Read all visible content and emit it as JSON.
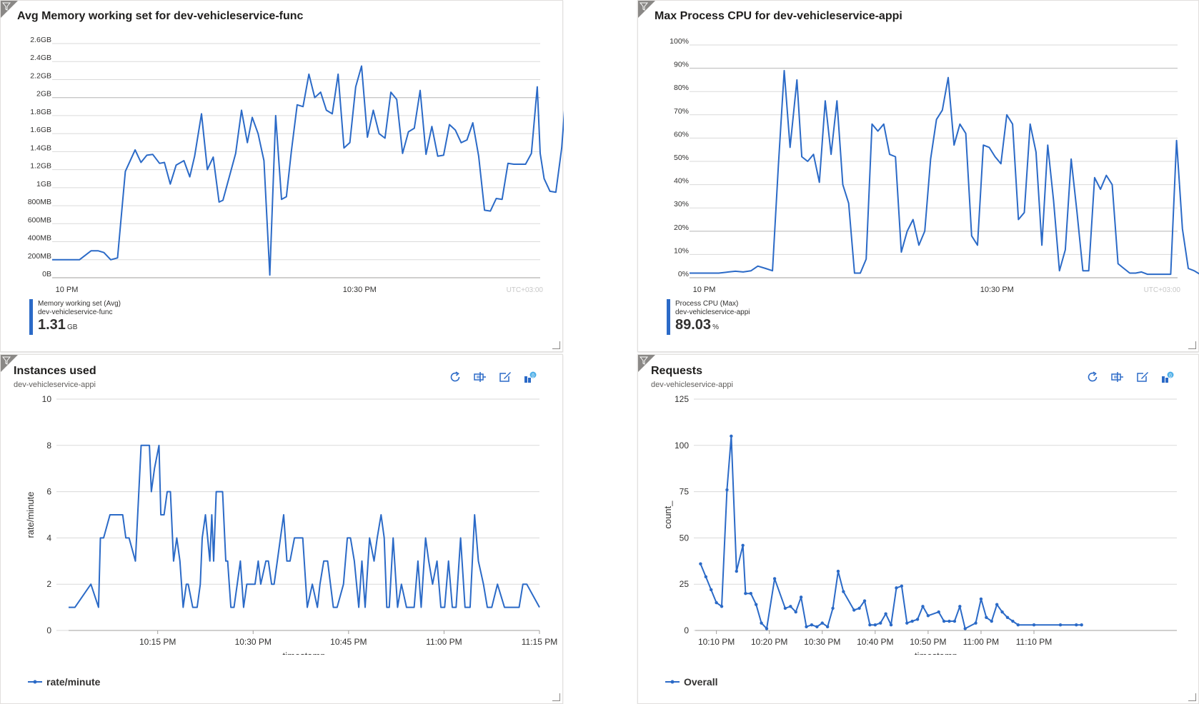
{
  "tiles": {
    "memory": {
      "title": "Avg Memory working set for dev-vehicleservice-func",
      "timezone": "UTC+03:00",
      "legend": {
        "metric": "Memory working set (Avg)",
        "resource": "dev-vehicleservice-func",
        "value": "1.31",
        "unit": "GB"
      }
    },
    "cpu": {
      "title": "Max Process CPU for dev-vehicleservice-appi",
      "timezone": "UTC+03:00",
      "legend": {
        "metric": "Process CPU (Max)",
        "resource": "dev-vehicleservice-appi",
        "value": "89.03",
        "unit": "%"
      }
    },
    "instances": {
      "title": "Instances used",
      "subtitle": "dev-vehicleservice-appi",
      "legend_label": "rate/minute"
    },
    "requests": {
      "title": "Requests",
      "subtitle": "dev-vehicleservice-appi",
      "legend_label": "Overall"
    }
  },
  "toolbar_icons": [
    "refresh-icon",
    "pin-icon",
    "edit-icon",
    "logs-icon"
  ],
  "colors": {
    "series": "#2b6ac7",
    "grid": "#dadada",
    "gridDark": "#c8c8c8",
    "axisText": "#323130",
    "tz": "#c8c8c8"
  },
  "chart_data": [
    {
      "type": "line",
      "title": "Avg Memory working set for dev-vehicleservice-func",
      "y_unit": "GB",
      "ylim": [
        0,
        2.6
      ],
      "yticks": [
        "0B",
        "200MB",
        "400MB",
        "600MB",
        "800MB",
        "1GB",
        "1.2GB",
        "1.4GB",
        "1.6GB",
        "1.8GB",
        "2GB",
        "2.2GB",
        "2.4GB",
        "2.6GB"
      ],
      "xlim_minutes": [
        -1.5,
        48.5
      ],
      "xticks": [
        {
          "label": "10 PM",
          "t": 0
        },
        {
          "label": "10:30 PM",
          "t": 30
        }
      ],
      "t": [
        -1.5,
        1.3,
        2.5,
        3.2,
        3.8,
        4.5,
        5.2,
        6.0,
        7.0,
        7.6,
        8.2,
        8.8,
        9.5,
        10.0,
        10.6,
        11.2,
        12.0,
        12.6,
        13.1,
        13.8,
        14.4,
        15.0,
        15.6,
        16.0,
        16.6,
        17.3,
        17.9,
        18.5,
        19.0,
        19.6,
        20.2,
        20.8,
        21.4,
        22.0,
        22.5,
        23.0,
        23.6,
        24.2,
        24.8,
        25.4,
        26.0,
        26.6,
        27.2,
        27.8,
        28.4,
        29.0,
        29.6,
        30.2,
        30.8,
        31.4,
        32.0,
        32.6,
        33.2,
        33.8,
        34.4,
        35.0,
        35.6,
        36.2,
        36.8,
        37.4,
        38.0,
        38.6,
        39.2,
        39.8,
        40.4,
        41.0,
        41.6,
        42.2,
        42.8,
        43.4,
        44.0,
        44.6,
        45.2,
        45.8,
        46.4,
        47.0,
        47.6,
        48.2,
        48.5,
        48.9,
        49.5,
        50.1,
        50.7,
        51.3,
        51.9
      ],
      "values": [
        0.2,
        0.2,
        0.3,
        0.3,
        0.28,
        0.2,
        0.22,
        1.18,
        1.42,
        1.28,
        1.36,
        1.37,
        1.27,
        1.28,
        1.04,
        1.25,
        1.3,
        1.12,
        1.35,
        1.82,
        1.2,
        1.34,
        0.84,
        0.86,
        1.1,
        1.38,
        1.86,
        1.5,
        1.78,
        1.6,
        1.3,
        0.03,
        1.8,
        0.87,
        0.9,
        1.4,
        1.92,
        1.9,
        2.26,
        2.0,
        2.06,
        1.86,
        1.82,
        2.26,
        1.44,
        1.5,
        2.12,
        2.35,
        1.56,
        1.86,
        1.6,
        1.55,
        2.06,
        1.98,
        1.38,
        1.62,
        1.66,
        2.08,
        1.37,
        1.68,
        1.35,
        1.36,
        1.7,
        1.64,
        1.5,
        1.53,
        1.72,
        1.35,
        0.75,
        0.74,
        0.88,
        0.87,
        1.27,
        1.26,
        1.26,
        1.26,
        1.38,
        2.12,
        1.38,
        1.1,
        0.96,
        0.95,
        1.44,
        2.31,
        2.29
      ],
      "legend": "Memory working set (Avg)"
    },
    {
      "type": "line",
      "title": "Max Process CPU for dev-vehicleservice-appi",
      "y_unit": "%",
      "ylim": [
        0,
        100
      ],
      "yticks": [
        "0%",
        "10%",
        "20%",
        "30%",
        "40%",
        "50%",
        "60%",
        "70%",
        "80%",
        "90%",
        "100%"
      ],
      "xlim_minutes": [
        -1.5,
        48.5
      ],
      "xticks": [
        {
          "label": "10 PM",
          "t": 0
        },
        {
          "label": "10:30 PM",
          "t": 30
        }
      ],
      "t": [
        -1.5,
        0.5,
        1.5,
        2.5,
        3.2,
        4.0,
        4.8,
        5.5,
        6.3,
        7.0,
        7.6,
        8.2,
        8.8,
        9.5,
        10.0,
        10.6,
        11.2,
        11.8,
        12.4,
        13.0,
        13.6,
        14.2,
        14.8,
        15.4,
        16.0,
        16.6,
        17.2,
        17.8,
        18.4,
        19.0,
        19.6,
        20.2,
        20.8,
        21.4,
        22.0,
        22.6,
        23.2,
        23.8,
        24.4,
        25.0,
        25.6,
        26.2,
        26.8,
        27.4,
        28.0,
        28.6,
        29.2,
        29.8,
        30.4,
        31.0,
        31.6,
        32.2,
        32.8,
        33.4,
        34.0,
        34.6,
        35.2,
        35.8,
        36.4,
        37.0,
        37.6,
        38.2,
        38.8,
        39.4,
        40.0,
        40.6,
        41.2,
        41.8,
        42.4,
        43.0,
        43.6,
        44.2,
        44.8,
        45.4,
        46.0,
        46.6,
        47.2,
        47.8,
        48.4,
        49.0,
        49.6,
        50.2,
        50.8,
        51.4,
        52.0
      ],
      "values": [
        2,
        2,
        2,
        2.5,
        2.8,
        2.5,
        3,
        5,
        4,
        3,
        48,
        89,
        56,
        85,
        52,
        50,
        53,
        41,
        76,
        53,
        76,
        40,
        32,
        2,
        2,
        8,
        66,
        63,
        66,
        53,
        52,
        11,
        20,
        25,
        14,
        20,
        51,
        68,
        72,
        86,
        57,
        66,
        62,
        18,
        14,
        57,
        56,
        52,
        49,
        70,
        66,
        25,
        28,
        66,
        54,
        14,
        57,
        33,
        3,
        12,
        51,
        28,
        3,
        3,
        43,
        38,
        44,
        40,
        6,
        4,
        2,
        2,
        2.5,
        1.5,
        1.5,
        1.5,
        1.5,
        1.5,
        59,
        21,
        4,
        3,
        1.5,
        1.5,
        1.5
      ],
      "legend": "Process CPU (Max)"
    },
    {
      "type": "line",
      "title": "Instances used",
      "xlabel": "timestamp",
      "ylabel": "rate/minute",
      "ylim": [
        0,
        10
      ],
      "yticks": [
        0,
        2,
        4,
        6,
        8,
        10
      ],
      "xlim_minutes": [
        -29,
        45
      ],
      "xticks": [
        {
          "label": "10:15 PM",
          "t": -15
        },
        {
          "label": "10:30 PM",
          "t": 0
        },
        {
          "label": "10:45 PM",
          "t": 15
        },
        {
          "label": "11:00 PM",
          "t": 30
        },
        {
          "label": "11:15 PM",
          "t": 45
        }
      ],
      "t": [
        -29,
        -28,
        -25.5,
        -24.3,
        -24,
        -23.5,
        -22.5,
        -21.3,
        -20.8,
        -20.5,
        -20,
        -19.5,
        -18.5,
        -17.6,
        -17.3,
        -16.8,
        -16.3,
        -16,
        -15.5,
        -14.8,
        -14.5,
        -14.3,
        -14,
        -13.5,
        -13.2,
        -13,
        -12.5,
        -12,
        -11.5,
        -11,
        -10.5,
        -10.2,
        -9.5,
        -8.8,
        -8.3,
        -8,
        -7.5,
        -6.8,
        -6.5,
        -6.2,
        -5.8,
        -5.3,
        -5,
        -4.8,
        -4.3,
        -4,
        -3.5,
        -3,
        -2.5,
        -2,
        -1.5,
        -1,
        -0.5,
        0,
        0.3,
        0.8,
        1.2,
        2,
        2.4,
        2.9,
        3.3,
        3.8,
        4.3,
        4.8,
        5.3,
        5.8,
        6.5,
        7.2,
        7.8,
        8.5,
        9.3,
        10.1,
        10.5,
        11.1,
        11.7,
        12.6,
        13.2,
        14.2,
        14.8,
        15.3,
        15.9,
        16.6,
        17.1,
        17.6,
        18.3,
        19.0,
        19.5,
        20.1,
        20.6,
        21.0,
        21.4,
        22.0,
        22.7,
        23.3,
        24.1,
        24.7,
        25.3,
        25.9,
        26.4,
        27.1,
        27.6,
        28.2,
        28.9,
        29.5,
        30.1,
        30.7,
        31.3,
        31.9,
        32.6,
        33.3,
        34.1,
        34.8,
        35.4,
        36.2,
        36.8,
        37.5,
        38.4,
        39.5,
        40.7,
        41.8,
        42.4,
        43.0,
        45
      ],
      "values": [
        1,
        1,
        2,
        1,
        4,
        4,
        5,
        5,
        5,
        5,
        4,
        4,
        3,
        8,
        8,
        8,
        8,
        6,
        7,
        8,
        5,
        5,
        5,
        6,
        6,
        6,
        3,
        4,
        3,
        1,
        2,
        2,
        1,
        1,
        2,
        4,
        5,
        3,
        5,
        3,
        6,
        6,
        6,
        6,
        3,
        3,
        1,
        1,
        2,
        3,
        1,
        2,
        2,
        2,
        2,
        3,
        2,
        3,
        3,
        2,
        2,
        3,
        4,
        5,
        3,
        3,
        4,
        4,
        4,
        1,
        2,
        1,
        2,
        3,
        3,
        1,
        1,
        2,
        4,
        4,
        3,
        1,
        3,
        1,
        4,
        3,
        4,
        5,
        4,
        1,
        1,
        4,
        1,
        2,
        1,
        1,
        1,
        3,
        1,
        4,
        3,
        2,
        3,
        1,
        1,
        3,
        1,
        1,
        4,
        1,
        1,
        5,
        3,
        2,
        1,
        1,
        2,
        1,
        1,
        1,
        2,
        2,
        1
      ],
      "legend": "rate/minute"
    },
    {
      "type": "line",
      "title": "Requests",
      "xlabel": "timestamp",
      "ylabel": "count_",
      "ylim": [
        0,
        125
      ],
      "yticks": [
        0,
        25,
        50,
        75,
        100,
        125
      ],
      "xlim_minutes": [
        -4,
        87
      ],
      "xticks": [
        {
          "label": "10:10 PM",
          "t": 0
        },
        {
          "label": "10:20 PM",
          "t": 10
        },
        {
          "label": "10:30 PM",
          "t": 20
        },
        {
          "label": "10:40 PM",
          "t": 30
        },
        {
          "label": "10:50 PM",
          "t": 40
        },
        {
          "label": "11:00 PM",
          "t": 50
        },
        {
          "label": "11:10 PM",
          "t": 60
        }
      ],
      "t": [
        -3,
        -2,
        -1,
        0,
        1,
        2,
        2.8,
        3.8,
        5,
        5.5,
        6.5,
        7.5,
        8.5,
        9.5,
        11,
        13,
        14,
        15,
        16,
        17,
        18,
        19,
        20,
        21,
        22,
        23,
        24,
        26,
        27,
        28,
        29,
        30,
        31,
        32,
        33,
        34,
        35,
        36,
        37,
        38,
        39,
        40,
        42,
        43,
        44,
        45,
        46,
        47,
        49,
        50,
        51,
        52,
        53,
        54,
        55,
        56,
        57,
        60,
        65,
        68,
        69
      ],
      "values": [
        36,
        29,
        22,
        15,
        13,
        76,
        105,
        32,
        46,
        20,
        20,
        14,
        4,
        1,
        28,
        12,
        13,
        10,
        18,
        2,
        3,
        2,
        4,
        2,
        12,
        32,
        21,
        11,
        12,
        16,
        3,
        3,
        4,
        9,
        3,
        23,
        24,
        4,
        5,
        6,
        13,
        8,
        10,
        5,
        5,
        5,
        13,
        1,
        4,
        17,
        7,
        5,
        14,
        10,
        7,
        5,
        3,
        3,
        3,
        3,
        3
      ],
      "legend": "Overall"
    }
  ]
}
